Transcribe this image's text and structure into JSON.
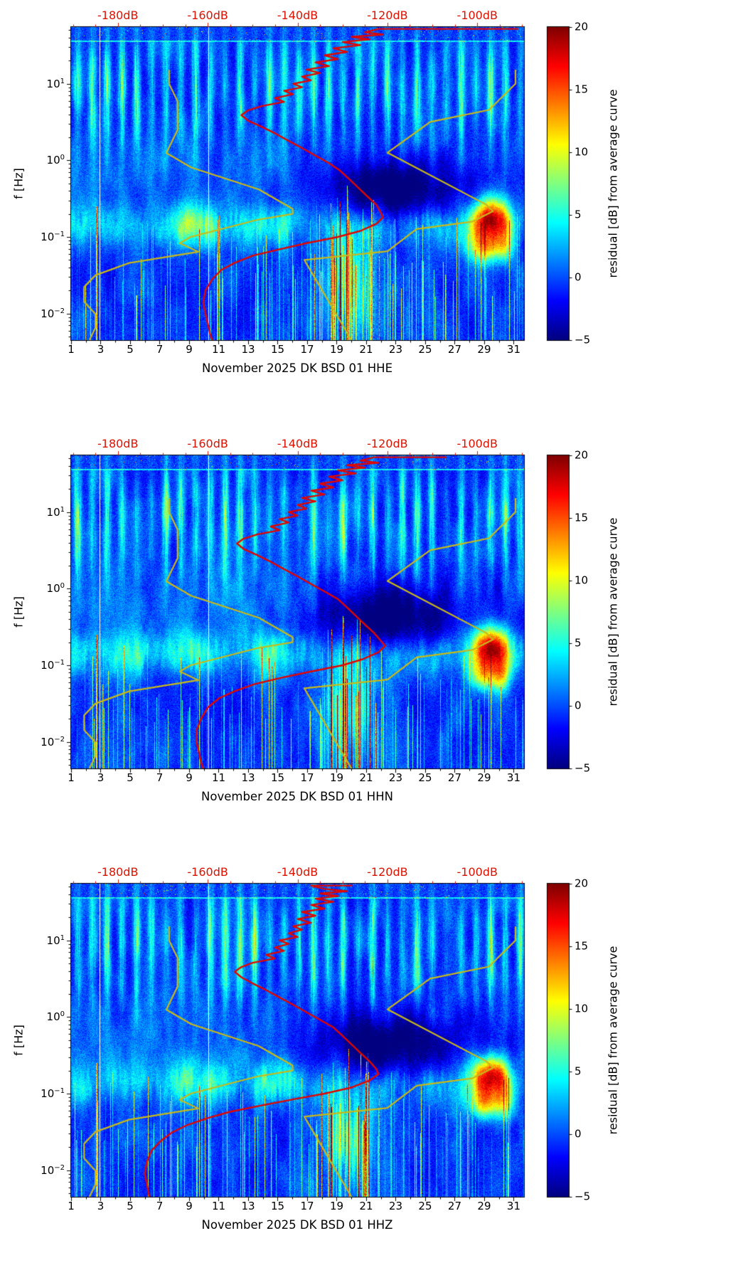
{
  "figure": {
    "ylabel": "f [Hz]",
    "colorbar_label": "residual [dB] from average curve",
    "top_tick_labels": [
      "-180dB",
      "-160dB",
      "-140dB",
      "-120dB",
      "-100dB"
    ],
    "top_tick_values": [
      -180,
      -160,
      -140,
      -120,
      -100
    ],
    "x_tick_labels": [
      "1",
      "3",
      "5",
      "7",
      "9",
      "11",
      "13",
      "15",
      "17",
      "19",
      "21",
      "23",
      "25",
      "27",
      "29",
      "31"
    ],
    "x_tick_values": [
      1,
      3,
      5,
      7,
      9,
      11,
      13,
      15,
      17,
      19,
      21,
      23,
      25,
      27,
      29,
      31
    ],
    "y_tick_exponents": [
      1,
      0,
      -1,
      -2
    ],
    "colorbar_tick_labels": [
      "20",
      "15",
      "10",
      "5",
      "0",
      "−5"
    ],
    "colorbar_tick_values": [
      20,
      15,
      10,
      5,
      0,
      -5
    ],
    "colors": {
      "top_axis_red": "#dd1100",
      "average_curve_red": "#e10600",
      "noise_model_yellow": "#c9b918",
      "background": "#ffffff"
    }
  },
  "chart_data": [
    {
      "type": "heatmap",
      "subtype": "psd-residual-spectrogram",
      "xlabel": "November 2025 DK BSD 01 HHE",
      "month": "November 2025",
      "station": "DK BSD 01",
      "channel": "HHE",
      "x_range_days": [
        1,
        31.7
      ],
      "f_range_hz": [
        0.0045,
        55
      ],
      "top_axis_db_range": [
        -190.4,
        -89.6
      ],
      "colorbar": {
        "label": "residual [dB] from average curve",
        "range_db": [
          -5,
          20
        ]
      },
      "seed": 101,
      "average_psd_curve_db_freq": [
        [
          -91,
          52
        ],
        [
          -122,
          52
        ],
        [
          -125,
          47
        ],
        [
          -121,
          44
        ],
        [
          -128,
          41
        ],
        [
          -124,
          38
        ],
        [
          -130,
          35
        ],
        [
          -126,
          32
        ],
        [
          -132,
          29
        ],
        [
          -129,
          26
        ],
        [
          -134,
          23.5
        ],
        [
          -131,
          21
        ],
        [
          -136,
          19
        ],
        [
          -133,
          17
        ],
        [
          -138,
          15.3
        ],
        [
          -135,
          13.8
        ],
        [
          -139,
          12.4
        ],
        [
          -137,
          11.1
        ],
        [
          -141,
          10
        ],
        [
          -139,
          9
        ],
        [
          -143,
          8.1
        ],
        [
          -141,
          7.3
        ],
        [
          -145,
          6.5
        ],
        [
          -143,
          5.8
        ],
        [
          -148,
          5.1
        ],
        [
          -151,
          4.5
        ],
        [
          -152.5,
          3.9
        ],
        [
          -151,
          3.3
        ],
        [
          -148,
          2.75
        ],
        [
          -145,
          2.25
        ],
        [
          -142,
          1.8
        ],
        [
          -139,
          1.45
        ],
        [
          -136,
          1.15
        ],
        [
          -133,
          0.92
        ],
        [
          -130.5,
          0.73
        ],
        [
          -128.5,
          0.57
        ],
        [
          -126.5,
          0.44
        ],
        [
          -124.5,
          0.34
        ],
        [
          -122.5,
          0.265
        ],
        [
          -121.5,
          0.21
        ],
        [
          -121,
          0.18
        ],
        [
          -122.5,
          0.148
        ],
        [
          -126,
          0.12
        ],
        [
          -131,
          0.1
        ],
        [
          -138,
          0.083
        ],
        [
          -144,
          0.069
        ],
        [
          -150,
          0.057
        ],
        [
          -154,
          0.046
        ],
        [
          -157,
          0.037
        ],
        [
          -159,
          0.028
        ],
        [
          -160.5,
          0.02
        ],
        [
          -161,
          0.014
        ],
        [
          -160.5,
          0.01
        ],
        [
          -160,
          0.0075
        ],
        [
          -159.5,
          0.0055
        ],
        [
          -159,
          0.0045
        ]
      ],
      "high_residual_events": [
        {
          "days": [
            8.5,
            11
          ],
          "freq_hz": [
            0.08,
            0.2
          ],
          "peak_residual_db": 8
        },
        {
          "days": [
            13.5,
            16
          ],
          "freq_hz": [
            0.1,
            0.25
          ],
          "peak_residual_db": 7
        },
        {
          "days": [
            18.5,
            21.5
          ],
          "freq_hz": [
            0.008,
            0.12
          ],
          "peak_residual_db": 13
        },
        {
          "days": [
            28,
            30.8
          ],
          "freq_hz": [
            0.05,
            0.25
          ],
          "peak_residual_db": 19
        },
        {
          "days": [
            19,
            27
          ],
          "freq_hz": [
            0.15,
            0.9
          ],
          "peak_residual_db": -4
        }
      ]
    },
    {
      "type": "heatmap",
      "subtype": "psd-residual-spectrogram",
      "xlabel": "November 2025 DK BSD 01 HHN",
      "month": "November 2025",
      "station": "DK BSD 01",
      "channel": "HHN",
      "x_range_days": [
        1,
        31.7
      ],
      "f_range_hz": [
        0.0045,
        55
      ],
      "top_axis_db_range": [
        -190.4,
        -89.6
      ],
      "colorbar": {
        "label": "residual [dB] from average curve",
        "range_db": [
          -5,
          20
        ]
      },
      "seed": 202,
      "average_psd_curve_db_freq": [
        [
          -107,
          52
        ],
        [
          -123,
          52
        ],
        [
          -126,
          47
        ],
        [
          -122,
          44
        ],
        [
          -129,
          41
        ],
        [
          -125,
          38
        ],
        [
          -131,
          35
        ],
        [
          -127,
          32
        ],
        [
          -133,
          29
        ],
        [
          -130,
          26
        ],
        [
          -135,
          23.5
        ],
        [
          -132,
          21
        ],
        [
          -137,
          19
        ],
        [
          -134,
          17
        ],
        [
          -139,
          15.3
        ],
        [
          -136,
          13.8
        ],
        [
          -140,
          12.4
        ],
        [
          -138,
          11.1
        ],
        [
          -142,
          10
        ],
        [
          -140,
          9
        ],
        [
          -144,
          8.1
        ],
        [
          -142,
          7.3
        ],
        [
          -146,
          6.5
        ],
        [
          -144,
          5.8
        ],
        [
          -149,
          5.1
        ],
        [
          -152,
          4.5
        ],
        [
          -153.5,
          3.9
        ],
        [
          -152,
          3.3
        ],
        [
          -149,
          2.75
        ],
        [
          -146,
          2.25
        ],
        [
          -143,
          1.8
        ],
        [
          -140,
          1.45
        ],
        [
          -137,
          1.15
        ],
        [
          -134,
          0.92
        ],
        [
          -131,
          0.73
        ],
        [
          -129,
          0.57
        ],
        [
          -127,
          0.44
        ],
        [
          -125,
          0.34
        ],
        [
          -123,
          0.265
        ],
        [
          -121.5,
          0.21
        ],
        [
          -120.5,
          0.18
        ],
        [
          -122,
          0.148
        ],
        [
          -125.5,
          0.12
        ],
        [
          -130,
          0.1
        ],
        [
          -137,
          0.083
        ],
        [
          -143.5,
          0.069
        ],
        [
          -149.5,
          0.057
        ],
        [
          -154,
          0.046
        ],
        [
          -157.5,
          0.037
        ],
        [
          -160,
          0.028
        ],
        [
          -161.5,
          0.02
        ],
        [
          -162.5,
          0.014
        ],
        [
          -162.5,
          0.01
        ],
        [
          -162,
          0.0075
        ],
        [
          -161.5,
          0.0055
        ],
        [
          -161,
          0.0045
        ]
      ],
      "high_residual_events": [
        {
          "days": [
            8.5,
            11
          ],
          "freq_hz": [
            0.08,
            0.2
          ],
          "peak_residual_db": 8
        },
        {
          "days": [
            13.5,
            16
          ],
          "freq_hz": [
            0.1,
            0.25
          ],
          "peak_residual_db": 7
        },
        {
          "days": [
            18.5,
            21.5
          ],
          "freq_hz": [
            0.008,
            0.12
          ],
          "peak_residual_db": 13
        },
        {
          "days": [
            28,
            30.8
          ],
          "freq_hz": [
            0.05,
            0.25
          ],
          "peak_residual_db": 19
        },
        {
          "days": [
            19,
            27
          ],
          "freq_hz": [
            0.15,
            0.9
          ],
          "peak_residual_db": -4
        }
      ]
    },
    {
      "type": "heatmap",
      "subtype": "psd-residual-spectrogram",
      "xlabel": "November 2025 DK BSD 01 HHZ",
      "month": "November 2025",
      "station": "DK BSD 01",
      "channel": "HHZ",
      "x_range_days": [
        1,
        31.7
      ],
      "f_range_hz": [
        0.0045,
        55
      ],
      "top_axis_db_range": [
        -190.4,
        -89.6
      ],
      "colorbar": {
        "label": "residual [dB] from average curve",
        "range_db": [
          -5,
          20
        ]
      },
      "seed": 303,
      "average_psd_curve_db_freq": [
        [
          -128,
          52
        ],
        [
          -137,
          52
        ],
        [
          -134,
          47
        ],
        [
          -129,
          44
        ],
        [
          -135,
          41
        ],
        [
          -131,
          38
        ],
        [
          -136,
          35
        ],
        [
          -132,
          32
        ],
        [
          -137,
          29
        ],
        [
          -134,
          26
        ],
        [
          -139,
          23.5
        ],
        [
          -136,
          21
        ],
        [
          -140,
          19
        ],
        [
          -137,
          17
        ],
        [
          -141,
          15.3
        ],
        [
          -139,
          13.8
        ],
        [
          -142,
          12.4
        ],
        [
          -140,
          11.1
        ],
        [
          -144,
          10
        ],
        [
          -142,
          9
        ],
        [
          -145,
          8.1
        ],
        [
          -143,
          7.3
        ],
        [
          -147,
          6.5
        ],
        [
          -145,
          5.8
        ],
        [
          -150,
          5.1
        ],
        [
          -152.5,
          4.5
        ],
        [
          -154,
          3.9
        ],
        [
          -152.5,
          3.3
        ],
        [
          -150,
          2.75
        ],
        [
          -147,
          2.25
        ],
        [
          -144,
          1.8
        ],
        [
          -141,
          1.45
        ],
        [
          -138,
          1.15
        ],
        [
          -135,
          0.92
        ],
        [
          -132,
          0.73
        ],
        [
          -130,
          0.57
        ],
        [
          -128,
          0.44
        ],
        [
          -126,
          0.34
        ],
        [
          -124,
          0.265
        ],
        [
          -122.5,
          0.21
        ],
        [
          -122,
          0.18
        ],
        [
          -124,
          0.148
        ],
        [
          -128,
          0.12
        ],
        [
          -134,
          0.1
        ],
        [
          -141,
          0.084
        ],
        [
          -148,
          0.07
        ],
        [
          -155,
          0.058
        ],
        [
          -160,
          0.048
        ],
        [
          -164.5,
          0.039
        ],
        [
          -168,
          0.031
        ],
        [
          -170.5,
          0.024
        ],
        [
          -172.5,
          0.018
        ],
        [
          -173.5,
          0.013
        ],
        [
          -174,
          0.009
        ],
        [
          -173.5,
          0.0065
        ],
        [
          -173,
          0.0045
        ]
      ],
      "high_residual_events": [
        {
          "days": [
            8.5,
            11
          ],
          "freq_hz": [
            0.08,
            0.2
          ],
          "peak_residual_db": 8
        },
        {
          "days": [
            13.5,
            16
          ],
          "freq_hz": [
            0.1,
            0.25
          ],
          "peak_residual_db": 7
        },
        {
          "days": [
            18.5,
            21.5
          ],
          "freq_hz": [
            0.008,
            0.12
          ],
          "peak_residual_db": 13
        },
        {
          "days": [
            28,
            30.8
          ],
          "freq_hz": [
            0.05,
            0.25
          ],
          "peak_residual_db": 19
        },
        {
          "days": [
            19,
            27
          ],
          "freq_hz": [
            0.15,
            0.9
          ],
          "peak_residual_db": -4
        }
      ]
    }
  ],
  "noise_models": {
    "nlnm_db_freq": [
      [
        -168.6,
        15
      ],
      [
        -168.6,
        10
      ],
      [
        -166.7,
        5.9
      ],
      [
        -166.7,
        2.5
      ],
      [
        -169.2,
        1.25
      ],
      [
        -163.7,
        0.81
      ],
      [
        -148.6,
        0.417
      ],
      [
        -141.1,
        0.233
      ],
      [
        -141.1,
        0.2
      ],
      [
        -149.0,
        0.167
      ],
      [
        -163.8,
        0.1
      ],
      [
        -166.2,
        0.083
      ],
      [
        -162.1,
        0.064
      ],
      [
        -177.5,
        0.0457
      ],
      [
        -185.0,
        0.0316
      ],
      [
        -187.5,
        0.0222
      ],
      [
        -187.5,
        0.0143
      ],
      [
        -185.0,
        0.0099
      ],
      [
        -185.0,
        0.0065
      ],
      [
        -186.3,
        0.0045
      ]
    ],
    "nhnm_db_freq": [
      [
        -91.5,
        15
      ],
      [
        -91.5,
        10
      ],
      [
        -97.4,
        4.55
      ],
      [
        -110.5,
        3.17
      ],
      [
        -120.0,
        1.26
      ],
      [
        -98.0,
        0.264
      ],
      [
        -96.5,
        0.217
      ],
      [
        -101.0,
        0.159
      ],
      [
        -113.5,
        0.127
      ],
      [
        -120.0,
        0.065
      ],
      [
        -138.5,
        0.05
      ],
      [
        -128.0,
        0.0045
      ]
    ]
  }
}
